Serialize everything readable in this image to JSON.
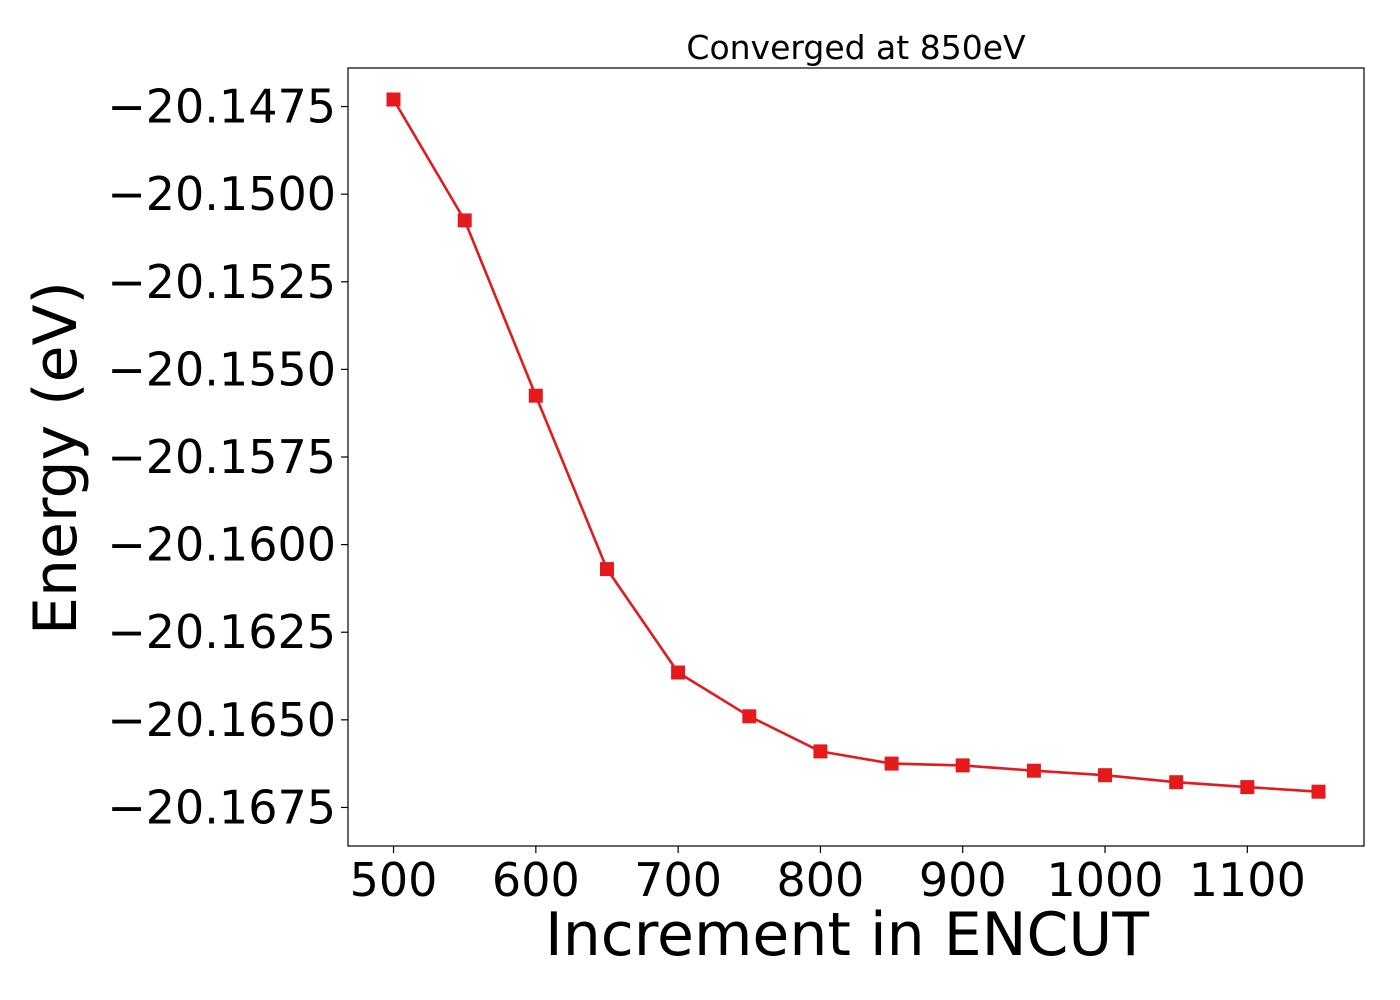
{
  "chart_data": {
    "type": "line",
    "title": "Converged at 850eV",
    "xlabel": "Increment in ENCUT",
    "ylabel": "Energy (eV)",
    "xlim": [
      468,
      1182
    ],
    "ylim": [
      -20.1686,
      -20.1464
    ],
    "x_ticks": [
      500,
      600,
      700,
      800,
      900,
      1000,
      1100
    ],
    "x_tick_labels": [
      "500",
      "600",
      "700",
      "800",
      "900",
      "1000",
      "1100"
    ],
    "y_ticks": [
      -20.1475,
      -20.15,
      -20.1525,
      -20.155,
      -20.1575,
      -20.16,
      -20.1625,
      -20.165,
      -20.1675
    ],
    "y_tick_labels": [
      "−20.1475",
      "−20.1500",
      "−20.1525",
      "−20.1550",
      "−20.1575",
      "−20.1600",
      "−20.1625",
      "−20.1650",
      "−20.1675"
    ],
    "grid": false,
    "series": [
      {
        "color": "#e41a1c",
        "marker": "square",
        "x": [
          500,
          550,
          600,
          650,
          700,
          750,
          800,
          850,
          900,
          950,
          1000,
          1050,
          1100,
          1150
        ],
        "y": [
          -20.1473,
          -20.15075,
          -20.15575,
          -20.1607,
          -20.16365,
          -20.1649,
          -20.1659,
          -20.16625,
          -20.1663,
          -20.16645,
          -20.16658,
          -20.16678,
          -20.16692,
          -20.16705
        ]
      }
    ]
  }
}
